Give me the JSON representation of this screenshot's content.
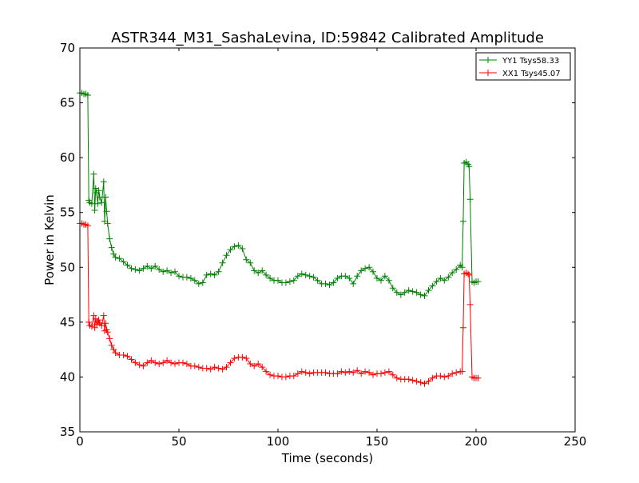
{
  "chart_data": {
    "type": "line",
    "title": "ASTR344_M31_SashaLevina, ID:59842 Calibrated Amplitude",
    "xlabel": "Time (seconds)",
    "ylabel": "Power in Kelvin",
    "xlim": [
      0,
      250
    ],
    "ylim": [
      35,
      70
    ],
    "xticks": [
      0,
      50,
      100,
      150,
      200,
      250
    ],
    "yticks": [
      35,
      40,
      45,
      50,
      55,
      60,
      65,
      70
    ],
    "grid": false,
    "legend_position": "top-right",
    "marker": "+",
    "series": [
      {
        "name": "YY1 Tsys58.33",
        "color": "#008000",
        "x": [
          0,
          1,
          2,
          3,
          4,
          4.5,
          5,
          6,
          7,
          7.5,
          8,
          8.5,
          9,
          9.5,
          10,
          11,
          12,
          12.5,
          13,
          13.5,
          14,
          15,
          16,
          17,
          18,
          20,
          22,
          24,
          26,
          28,
          30,
          32,
          34,
          36,
          38,
          40,
          42,
          44,
          46,
          48,
          50,
          52,
          54,
          56,
          58,
          60,
          62,
          64,
          66,
          68,
          70,
          72,
          74,
          76,
          78,
          80,
          82,
          84,
          86,
          88,
          90,
          92,
          94,
          96,
          98,
          100,
          102,
          104,
          106,
          108,
          110,
          112,
          114,
          116,
          118,
          120,
          122,
          124,
          126,
          128,
          130,
          132,
          134,
          136,
          138,
          140,
          142,
          144,
          146,
          148,
          150,
          152,
          154,
          156,
          158,
          160,
          162,
          164,
          166,
          168,
          170,
          172,
          174,
          176,
          178,
          180,
          182,
          184,
          186,
          188,
          190,
          192,
          193,
          193.5,
          194,
          195,
          196,
          196.5,
          197,
          198,
          199,
          200,
          201
        ],
        "values": [
          65.9,
          65.9,
          65.8,
          65.8,
          65.7,
          56.1,
          55.9,
          55.8,
          58.5,
          55.2,
          57.2,
          56.8,
          55.8,
          57.0,
          56.4,
          55.9,
          57.8,
          54.2,
          56.4,
          55.1,
          54.0,
          52.6,
          51.8,
          51.2,
          50.9,
          50.8,
          50.5,
          50.2,
          49.9,
          49.8,
          49.7,
          49.9,
          50.1,
          49.9,
          50.1,
          49.8,
          49.6,
          49.7,
          49.5,
          49.6,
          49.2,
          49.1,
          49.1,
          49.0,
          48.8,
          48.5,
          48.6,
          49.3,
          49.4,
          49.3,
          49.6,
          50.4,
          51.1,
          51.6,
          51.9,
          52.0,
          51.7,
          50.7,
          50.4,
          49.7,
          49.5,
          49.7,
          49.3,
          49.0,
          48.8,
          48.8,
          48.6,
          48.6,
          48.7,
          48.8,
          49.2,
          49.4,
          49.3,
          49.2,
          49.1,
          48.8,
          48.5,
          48.5,
          48.4,
          48.6,
          49.0,
          49.2,
          49.2,
          49.0,
          48.5,
          49.2,
          49.7,
          49.9,
          50.0,
          49.6,
          49.0,
          48.8,
          49.2,
          48.8,
          48.1,
          47.7,
          47.5,
          47.7,
          47.9,
          47.8,
          47.7,
          47.5,
          47.4,
          47.9,
          48.3,
          48.7,
          49.0,
          48.8,
          49.1,
          49.5,
          49.8,
          50.2,
          50.0,
          54.2,
          59.5,
          59.6,
          59.4,
          59.2,
          56.2,
          48.7,
          48.6,
          48.7,
          48.7
        ]
      },
      {
        "name": "XX1 Tsys45.07",
        "color": "#ff0000",
        "x": [
          0,
          1,
          2,
          3,
          4,
          4.5,
          5,
          6,
          7,
          7.5,
          8,
          8.5,
          9,
          9.5,
          10,
          11,
          12,
          12.5,
          13,
          13.5,
          14,
          15,
          16,
          17,
          18,
          20,
          22,
          24,
          26,
          28,
          30,
          32,
          34,
          36,
          38,
          40,
          42,
          44,
          46,
          48,
          50,
          52,
          54,
          56,
          58,
          60,
          62,
          64,
          66,
          68,
          70,
          72,
          74,
          76,
          78,
          80,
          82,
          84,
          86,
          88,
          90,
          92,
          94,
          96,
          98,
          100,
          102,
          104,
          106,
          108,
          110,
          112,
          114,
          116,
          118,
          120,
          122,
          124,
          126,
          128,
          130,
          132,
          134,
          136,
          138,
          140,
          142,
          144,
          146,
          148,
          150,
          152,
          154,
          156,
          158,
          160,
          162,
          164,
          166,
          168,
          170,
          172,
          174,
          176,
          178,
          180,
          182,
          184,
          186,
          188,
          190,
          192,
          193,
          193.5,
          194,
          195,
          196,
          196.5,
          197,
          198,
          199,
          200,
          201
        ],
        "values": [
          54.0,
          54.0,
          53.9,
          53.9,
          53.8,
          45.0,
          44.7,
          44.6,
          45.6,
          44.5,
          45.3,
          44.8,
          45.0,
          45.2,
          44.9,
          44.7,
          45.6,
          44.2,
          44.9,
          44.3,
          44.1,
          43.5,
          42.9,
          42.5,
          42.2,
          42.0,
          42.0,
          41.9,
          41.6,
          41.3,
          41.1,
          41.0,
          41.3,
          41.5,
          41.3,
          41.2,
          41.3,
          41.5,
          41.3,
          41.2,
          41.3,
          41.3,
          41.2,
          41.0,
          41.0,
          40.9,
          40.8,
          40.8,
          40.7,
          40.9,
          40.8,
          40.7,
          40.9,
          41.3,
          41.7,
          41.8,
          41.8,
          41.7,
          41.2,
          41.0,
          41.2,
          40.9,
          40.5,
          40.2,
          40.1,
          40.1,
          40.0,
          40.0,
          40.1,
          40.1,
          40.3,
          40.5,
          40.4,
          40.3,
          40.4,
          40.4,
          40.4,
          40.4,
          40.3,
          40.3,
          40.3,
          40.5,
          40.4,
          40.5,
          40.4,
          40.6,
          40.3,
          40.5,
          40.4,
          40.2,
          40.3,
          40.3,
          40.4,
          40.5,
          40.2,
          39.9,
          39.8,
          39.8,
          39.8,
          39.7,
          39.6,
          39.5,
          39.4,
          39.6,
          39.9,
          40.1,
          40.1,
          40.0,
          40.1,
          40.3,
          40.4,
          40.5,
          40.5,
          44.5,
          49.4,
          49.5,
          49.4,
          49.3,
          46.6,
          40.0,
          39.9,
          39.9,
          39.9
        ]
      }
    ]
  }
}
